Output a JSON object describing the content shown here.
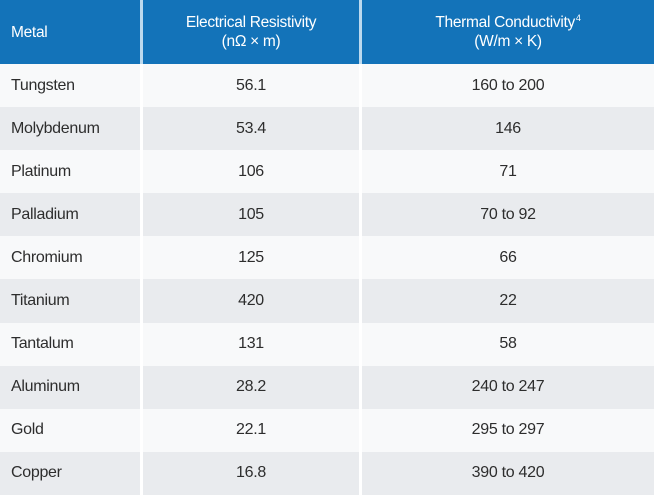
{
  "chart_data": {
    "type": "table",
    "columns": [
      {
        "label": "Metal",
        "unit": "",
        "footnote": ""
      },
      {
        "label": "Electrical Resistivity",
        "unit": "(nΩ × m)",
        "footnote": ""
      },
      {
        "label": "Thermal Conductivity",
        "unit": "(W/m × K)",
        "footnote": "4"
      }
    ],
    "rows": [
      {
        "metal": "Tungsten",
        "electrical_resistivity": "56.1",
        "thermal_conductivity": "160 to 200"
      },
      {
        "metal": "Molybdenum",
        "electrical_resistivity": "53.4",
        "thermal_conductivity": "146"
      },
      {
        "metal": "Platinum",
        "electrical_resistivity": "106",
        "thermal_conductivity": "71"
      },
      {
        "metal": "Palladium",
        "electrical_resistivity": "105",
        "thermal_conductivity": "70 to 92"
      },
      {
        "metal": "Chromium",
        "electrical_resistivity": "125",
        "thermal_conductivity": "66"
      },
      {
        "metal": "Titanium",
        "electrical_resistivity": "420",
        "thermal_conductivity": "22"
      },
      {
        "metal": "Tantalum",
        "electrical_resistivity": "131",
        "thermal_conductivity": "58"
      },
      {
        "metal": "Aluminum",
        "electrical_resistivity": "28.2",
        "thermal_conductivity": "240 to 247"
      },
      {
        "metal": "Gold",
        "electrical_resistivity": "22.1",
        "thermal_conductivity": "295 to 297"
      },
      {
        "metal": "Copper",
        "electrical_resistivity": "16.8",
        "thermal_conductivity": "390 to 420"
      }
    ],
    "layout": {
      "header_rows": 1,
      "striped": true,
      "column_alignment": [
        "left",
        "center",
        "center"
      ]
    }
  },
  "colors": {
    "header_bg": "#1373b9",
    "header_text": "#ffffff",
    "header_divider": "#bcd9ee",
    "row_odd_bg": "#f8f9fa",
    "row_even_bg": "#e9ebee",
    "cell_divider": "#ffffff",
    "body_text": "#2d2d2d"
  }
}
